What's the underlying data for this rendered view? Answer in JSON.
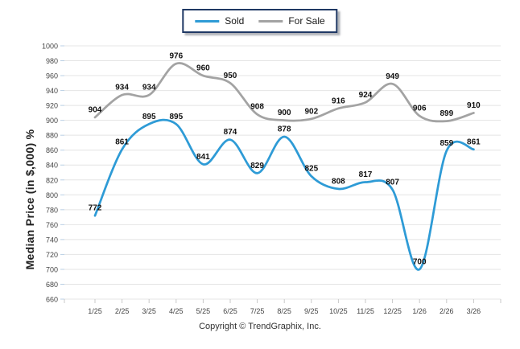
{
  "legend": {
    "items": [
      {
        "label": "Sold",
        "color": "#2e9bd6"
      },
      {
        "label": "For Sale",
        "color": "#a3a3a3"
      }
    ]
  },
  "footer": {
    "copyright": "Copyright © TrendGraphix, Inc."
  },
  "colors": {
    "sold_line": "#2e9bd6",
    "for_sale_line": "#a3a3a3",
    "legend_border": "#1f3864",
    "gridline": "#e4e4e4",
    "tick_text": "#444444",
    "data_label": "#111111"
  },
  "chart_data": {
    "type": "line",
    "title": "",
    "xlabel": "",
    "ylabel": "Median Price (in $,000) %",
    "categories": [
      "1/25",
      "2/25",
      "3/25",
      "4/25",
      "5/25",
      "6/25",
      "7/25",
      "8/25",
      "9/25",
      "10/25",
      "11/25",
      "12/25",
      "1/26",
      "2/26",
      "3/26"
    ],
    "series": [
      {
        "name": "Sold",
        "color": "#2e9bd6",
        "values": [
          772,
          861,
          895,
          895,
          841,
          874,
          829,
          878,
          825,
          808,
          817,
          807,
          700,
          859,
          861
        ]
      },
      {
        "name": "For Sale",
        "color": "#a3a3a3",
        "values": [
          904,
          934,
          934,
          976,
          960,
          950,
          908,
          900,
          902,
          916,
          924,
          949,
          906,
          899,
          910
        ]
      }
    ],
    "ylim": [
      660,
      1000
    ],
    "ytick_step": 20,
    "grid": "horizontal",
    "legend_position": "top-center",
    "data_labels": true,
    "line_style": "smooth"
  }
}
